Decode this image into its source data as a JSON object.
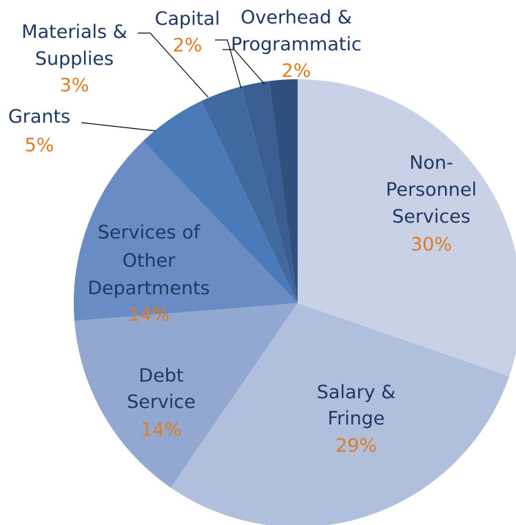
{
  "chart_data": {
    "type": "pie",
    "categories": [
      "Non-Personnel Services",
      "Salary & Fringe",
      "Debt Service",
      "Services of Other Departments",
      "Grants",
      "Materials & Supplies",
      "Capital",
      "Overhead & Programmatic"
    ],
    "values": [
      30,
      29,
      14,
      14,
      5,
      3,
      2,
      2
    ],
    "value_labels": [
      "30%",
      "29%",
      "14%",
      "14%",
      "5%",
      "3%",
      "2%",
      "2%"
    ],
    "colors": [
      "#c9d1e6",
      "#afbfdc",
      "#93a8d0",
      "#6a8cc4",
      "#4a7ab8",
      "#4069a0",
      "#3a5e92",
      "#2f4f7f"
    ]
  }
}
